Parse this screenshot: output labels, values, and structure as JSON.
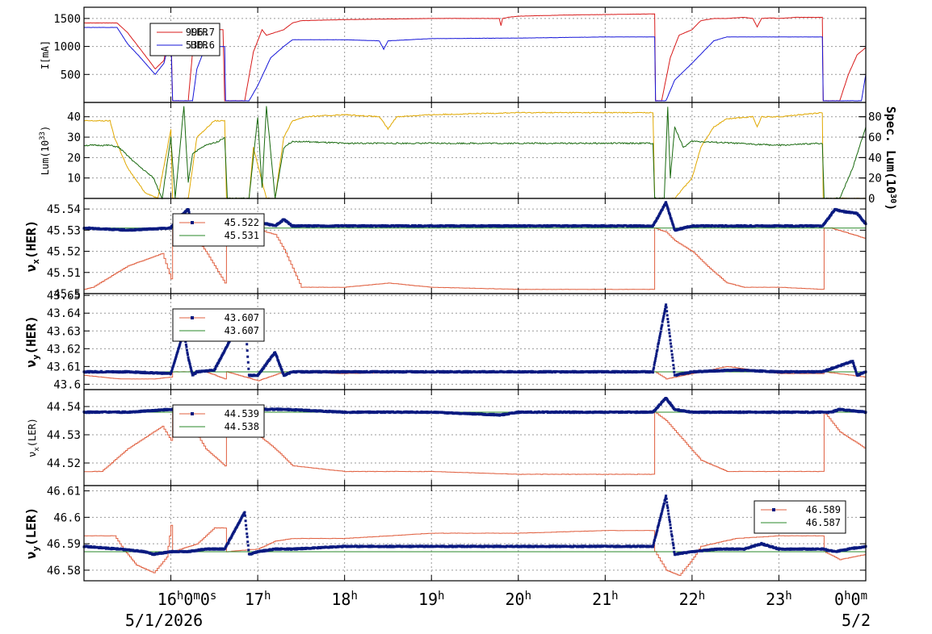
{
  "colors": {
    "ler": "#d81b1b",
    "her": "#1616d8",
    "lum_spec": "#e0a800",
    "lum": "#1a6a10",
    "tune_meas": "#0a1a80",
    "tune_set": "#e06040",
    "tune_ref": "#2a8a2a"
  },
  "chart_data": [
    {
      "type": "line",
      "name": "current",
      "ylabel": "I[mA]",
      "ylim": [
        0,
        1700
      ],
      "grid": true,
      "yticks": [
        "500",
        "1000",
        "1500"
      ],
      "legend": {
        "position": "top-left",
        "entries": [
          {
            "label": "LER",
            "value": "996.7"
          },
          {
            "label": "HER",
            "value": "530.6"
          }
        ]
      },
      "series": [
        {
          "name": "LER",
          "color": "#d81b1b",
          "x": [
            15.0,
            15.38,
            15.5,
            15.65,
            15.82,
            15.92,
            16.0,
            16.02,
            16.2,
            16.25,
            16.3,
            16.35,
            16.45,
            16.6,
            16.62,
            16.85,
            16.95,
            17.05,
            17.1,
            17.3,
            17.4,
            17.5,
            18.0,
            19.0,
            19.78,
            19.8,
            19.82,
            19.88,
            20.0,
            20.5,
            21.0,
            21.5,
            21.57,
            21.58,
            21.65,
            21.75,
            21.85,
            22.0,
            22.1,
            22.25,
            22.4,
            22.6,
            22.7,
            22.75,
            22.8,
            22.9,
            23.0,
            23.1,
            23.2,
            23.5,
            23.51,
            23.6,
            23.7,
            23.8,
            23.9,
            24.0
          ],
          "y": [
            1420,
            1420,
            1250,
            950,
            600,
            750,
            1400,
            30,
            30,
            900,
            1300,
            1300,
            1300,
            1300,
            30,
            30,
            900,
            1300,
            1200,
            1300,
            1420,
            1460,
            1480,
            1500,
            1500,
            1370,
            1500,
            1520,
            1540,
            1560,
            1570,
            1580,
            1580,
            30,
            30,
            800,
            1200,
            1300,
            1460,
            1500,
            1500,
            1520,
            1500,
            1350,
            1500,
            1510,
            1500,
            1510,
            1520,
            1520,
            30,
            30,
            30,
            500,
            850,
            980
          ]
        },
        {
          "name": "HER",
          "color": "#1616d8",
          "x": [
            15.0,
            15.38,
            15.5,
            15.65,
            15.82,
            15.92,
            16.0,
            16.02,
            16.25,
            16.3,
            16.4,
            16.62,
            16.63,
            16.9,
            17.0,
            17.15,
            17.3,
            17.4,
            18.0,
            18.4,
            18.45,
            18.5,
            19.0,
            20.0,
            21.0,
            21.57,
            21.58,
            21.7,
            21.8,
            22.0,
            22.25,
            22.4,
            22.7,
            23.0,
            23.5,
            23.51,
            23.95,
            24.0
          ],
          "y": [
            1340,
            1340,
            1050,
            800,
            500,
            700,
            1200,
            30,
            30,
            600,
            1000,
            1000,
            30,
            30,
            300,
            800,
            1000,
            1120,
            1120,
            1100,
            950,
            1100,
            1140,
            1150,
            1170,
            1170,
            30,
            30,
            400,
            700,
            1100,
            1170,
            1170,
            1170,
            1170,
            30,
            30,
            500
          ]
        }
      ]
    },
    {
      "type": "line",
      "name": "luminosity",
      "ylabel": "Lum(10^33)",
      "y2label": "Spec. Lum(10^30)",
      "ylim": [
        0,
        47
      ],
      "y2lim": [
        0,
        94
      ],
      "grid": true,
      "yticks": [
        "10",
        "20",
        "30",
        "40"
      ],
      "y2ticks": [
        "0",
        "20",
        "40",
        "60",
        "80"
      ],
      "series": [
        {
          "name": "",
          "color": "#e0a800",
          "x": [
            15.0,
            15.3,
            15.35,
            15.5,
            15.7,
            15.85,
            16.0,
            16.02,
            16.2,
            16.3,
            16.5,
            16.62,
            16.64,
            16.9,
            16.95,
            17.1,
            17.2,
            17.3,
            17.4,
            17.55,
            18.0,
            18.4,
            18.5,
            18.6,
            19.0,
            20.0,
            21.0,
            21.55,
            21.57,
            21.8,
            21.9,
            22.0,
            22.1,
            22.25,
            22.4,
            22.7,
            22.75,
            22.8,
            23.0,
            23.5,
            23.51,
            24.0
          ],
          "y": [
            38,
            38,
            30,
            15,
            3,
            0,
            34,
            0,
            0,
            30,
            38,
            38,
            0,
            0,
            25,
            0,
            0,
            30,
            38,
            40,
            41,
            40,
            34,
            40,
            41,
            42,
            42,
            42,
            0,
            0,
            5,
            10,
            25,
            35,
            39,
            40,
            35,
            40,
            40,
            42,
            0,
            0
          ]
        },
        {
          "name": "",
          "color": "#1a6a10",
          "x": [
            15.0,
            15.3,
            15.4,
            15.6,
            15.8,
            15.9,
            16.0,
            16.05,
            16.15,
            16.2,
            16.25,
            16.4,
            16.55,
            16.62,
            16.65,
            16.9,
            17.0,
            17.05,
            17.1,
            17.2,
            17.3,
            17.4,
            18.0,
            19.0,
            20.0,
            21.0,
            21.55,
            21.57,
            21.68,
            21.72,
            21.75,
            21.8,
            21.9,
            22.0,
            22.5,
            23.0,
            23.5,
            23.52,
            23.7,
            23.85,
            24.0
          ],
          "y": [
            26,
            26,
            25,
            17,
            10,
            0,
            30,
            0,
            45,
            8,
            22,
            26,
            28,
            30,
            0,
            0,
            40,
            5,
            45,
            0,
            25,
            28,
            27,
            27,
            27,
            27,
            27,
            0,
            0,
            45,
            10,
            35,
            25,
            28,
            27,
            26,
            27,
            0,
            0,
            15,
            35
          ]
        }
      ]
    },
    {
      "type": "scatter",
      "name": "nu_x_her",
      "ylabel": "νx(HER)",
      "ylim": [
        45.5,
        45.545
      ],
      "grid": true,
      "yticks": [
        "45.5",
        "45.51",
        "45.52",
        "45.53",
        "45.54"
      ],
      "legend": {
        "position": "top-left",
        "entries": [
          {
            "label": "",
            "value": "45.522"
          },
          {
            "label": "",
            "value": "45.531"
          }
        ]
      },
      "reference": 45.531,
      "measured": {
        "x": [
          15.0,
          15.5,
          16.0,
          16.05,
          16.2,
          16.25,
          16.4,
          16.6,
          16.8,
          17.0,
          17.2,
          17.3,
          17.4,
          18.0,
          19.0,
          20.0,
          21.0,
          21.55,
          21.7,
          21.8,
          22.0,
          23.0,
          23.5,
          23.65,
          23.7,
          23.9,
          24.0
        ],
        "y": [
          45.531,
          45.53,
          45.531,
          45.534,
          45.54,
          45.532,
          45.533,
          45.531,
          45.531,
          45.534,
          45.532,
          45.535,
          45.532,
          45.532,
          45.532,
          45.532,
          45.532,
          45.532,
          45.543,
          45.53,
          45.532,
          45.532,
          45.532,
          45.54,
          45.539,
          45.538,
          45.533
        ]
      },
      "setpoint": {
        "x": [
          15.0,
          15.1,
          15.5,
          15.9,
          16.0,
          16.02,
          16.2,
          16.4,
          16.62,
          16.64,
          17.0,
          17.1,
          17.2,
          17.3,
          17.5,
          18.0,
          18.5,
          19.0,
          20.0,
          21.0,
          21.55,
          21.57,
          21.7,
          21.8,
          22.0,
          22.2,
          22.4,
          22.6,
          23.0,
          23.5,
          23.52,
          23.6,
          24.0
        ],
        "y": [
          45.502,
          45.503,
          45.513,
          45.519,
          45.507,
          45.531,
          45.531,
          45.52,
          45.505,
          45.531,
          45.531,
          45.529,
          45.528,
          45.521,
          45.503,
          45.503,
          45.505,
          45.503,
          45.502,
          45.502,
          45.502,
          45.531,
          45.529,
          45.525,
          45.52,
          45.512,
          45.505,
          45.503,
          45.503,
          45.502,
          45.531,
          45.531,
          45.526
        ]
      }
    },
    {
      "type": "scatter",
      "name": "nu_y_her",
      "ylabel": "νy(HER)",
      "ylim": [
        43.597,
        43.651
      ],
      "grid": true,
      "yticks": [
        "43.6",
        "43.61",
        "43.62",
        "43.63",
        "43.64",
        "43.65"
      ],
      "legend": {
        "position": "top-left",
        "entries": [
          {
            "label": "",
            "value": "43.607"
          },
          {
            "label": "",
            "value": "43.607"
          }
        ]
      },
      "reference": 43.607,
      "measured": {
        "x": [
          15.0,
          15.5,
          16.0,
          16.15,
          16.2,
          16.25,
          16.3,
          16.5,
          16.85,
          16.9,
          17.0,
          17.2,
          17.3,
          17.4,
          18.0,
          19.0,
          20.0,
          21.0,
          21.55,
          21.7,
          21.8,
          22.0,
          22.5,
          23.0,
          23.5,
          23.85,
          23.9,
          24.0
        ],
        "y": [
          43.607,
          43.607,
          43.606,
          43.63,
          43.615,
          43.605,
          43.607,
          43.608,
          43.64,
          43.605,
          43.605,
          43.618,
          43.605,
          43.607,
          43.607,
          43.607,
          43.607,
          43.607,
          43.607,
          43.645,
          43.605,
          43.607,
          43.608,
          43.607,
          43.607,
          43.613,
          43.605,
          43.607
        ]
      },
      "setpoint": {
        "x": [
          15.0,
          15.4,
          15.8,
          16.0,
          16.02,
          16.4,
          16.62,
          16.64,
          17.0,
          17.3,
          18.0,
          19.0,
          20.0,
          21.0,
          21.55,
          21.57,
          21.7,
          22.0,
          22.4,
          23.0,
          23.5,
          23.52,
          24.0
        ],
        "y": [
          43.605,
          43.603,
          43.603,
          43.604,
          43.607,
          43.607,
          43.603,
          43.607,
          43.602,
          43.607,
          43.606,
          43.607,
          43.607,
          43.607,
          43.607,
          43.607,
          43.603,
          43.606,
          43.61,
          43.606,
          43.606,
          43.607,
          43.604
        ]
      }
    },
    {
      "type": "scatter",
      "name": "nu_x_ler",
      "ylabel": "νx(LER)",
      "ylim": [
        44.512,
        44.546
      ],
      "grid": true,
      "yticks": [
        "44.52",
        "44.53",
        "44.54"
      ],
      "legend": {
        "position": "top-left",
        "entries": [
          {
            "label": "",
            "value": "44.539"
          },
          {
            "label": "",
            "value": "44.538"
          }
        ]
      },
      "reference": 44.538,
      "measured": {
        "x": [
          15.0,
          15.1,
          15.5,
          16.0,
          16.2,
          16.4,
          16.6,
          17.0,
          17.3,
          18.0,
          19.0,
          19.8,
          20.0,
          21.0,
          21.55,
          21.7,
          21.8,
          22.0,
          23.0,
          23.5,
          23.6,
          23.7,
          24.0
        ],
        "y": [
          44.538,
          44.538,
          44.538,
          44.539,
          44.539,
          44.538,
          44.539,
          44.539,
          44.539,
          44.538,
          44.538,
          44.537,
          44.538,
          44.538,
          44.538,
          44.543,
          44.539,
          44.538,
          44.538,
          44.538,
          44.538,
          44.539,
          44.538
        ]
      },
      "setpoint": {
        "x": [
          15.0,
          15.2,
          15.5,
          15.9,
          16.0,
          16.02,
          16.2,
          16.4,
          16.62,
          16.64,
          17.0,
          17.2,
          17.4,
          18.0,
          19.0,
          20.0,
          21.0,
          21.55,
          21.57,
          21.7,
          21.9,
          22.1,
          22.4,
          23.0,
          23.5,
          23.52,
          23.7,
          24.0
        ],
        "y": [
          44.517,
          44.517,
          44.525,
          44.533,
          44.528,
          44.539,
          44.535,
          44.525,
          44.519,
          44.539,
          44.53,
          44.525,
          44.519,
          44.517,
          44.517,
          44.516,
          44.516,
          44.516,
          44.538,
          44.535,
          44.528,
          44.521,
          44.517,
          44.517,
          44.517,
          44.538,
          44.531,
          44.525
        ]
      }
    },
    {
      "type": "scatter",
      "name": "nu_y_ler",
      "ylabel": "νy(LER)",
      "ylim": [
        46.576,
        46.612
      ],
      "grid": true,
      "yticks": [
        "46.58",
        "46.59",
        "46.6",
        "46.61"
      ],
      "legend": {
        "position": "top-right",
        "entries": [
          {
            "label": "",
            "value": "46.589"
          },
          {
            "label": "",
            "value": "46.587"
          }
        ]
      },
      "reference": 46.587,
      "measured": {
        "x": [
          15.0,
          15.4,
          15.7,
          15.8,
          16.0,
          16.2,
          16.4,
          16.62,
          16.85,
          16.9,
          17.0,
          17.2,
          17.4,
          18.0,
          18.5,
          19.0,
          19.5,
          20.0,
          20.5,
          21.0,
          21.5,
          21.55,
          21.7,
          21.8,
          22.0,
          22.3,
          22.6,
          22.8,
          23.0,
          23.5,
          23.65,
          23.8,
          24.0
        ],
        "y": [
          46.589,
          46.588,
          46.587,
          46.586,
          46.587,
          46.587,
          46.588,
          46.588,
          46.602,
          46.586,
          46.587,
          46.588,
          46.588,
          46.589,
          46.589,
          46.589,
          46.589,
          46.589,
          46.589,
          46.589,
          46.589,
          46.589,
          46.608,
          46.586,
          46.587,
          46.588,
          46.588,
          46.59,
          46.588,
          46.588,
          46.587,
          46.588,
          46.589
        ]
      },
      "setpoint": {
        "x": [
          15.0,
          15.35,
          15.45,
          15.6,
          15.8,
          15.95,
          16.0,
          16.02,
          16.3,
          16.5,
          16.62,
          16.64,
          17.0,
          17.2,
          17.4,
          18.0,
          18.5,
          19.0,
          20.0,
          21.0,
          21.55,
          21.57,
          21.7,
          21.85,
          22.0,
          22.1,
          22.5,
          23.0,
          23.5,
          23.52,
          23.7,
          24.0
        ],
        "y": [
          46.593,
          46.593,
          46.588,
          46.582,
          46.579,
          46.585,
          46.597,
          46.587,
          46.59,
          46.596,
          46.596,
          46.587,
          46.588,
          46.591,
          46.592,
          46.592,
          46.593,
          46.594,
          46.594,
          46.595,
          46.595,
          46.587,
          46.58,
          46.578,
          46.584,
          46.589,
          46.592,
          46.593,
          46.593,
          46.587,
          46.584,
          46.586
        ]
      }
    }
  ],
  "xaxis": {
    "xlim": [
      15.0,
      24.0
    ],
    "ticks": [
      {
        "x": 16,
        "label": "16h0m0s"
      },
      {
        "x": 17,
        "label": "17h"
      },
      {
        "x": 18,
        "label": "18h"
      },
      {
        "x": 19,
        "label": "19h"
      },
      {
        "x": 20,
        "label": "20h"
      },
      {
        "x": 21,
        "label": "21h"
      },
      {
        "x": 22,
        "label": "22h"
      },
      {
        "x": 23,
        "label": "23h"
      },
      {
        "x": 24,
        "label": "0h0m"
      }
    ],
    "date_left": "5/1/2026",
    "date_right": "5/2"
  }
}
